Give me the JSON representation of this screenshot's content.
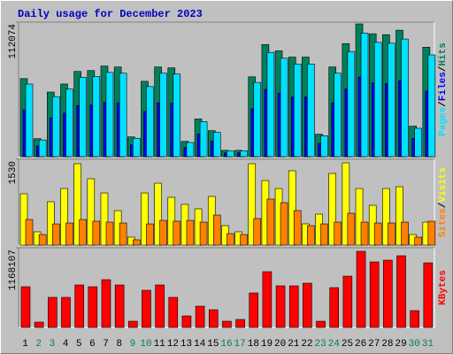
{
  "chart_data": [
    {
      "type": "bar",
      "title": "Daily usage for December 2023",
      "title_color": "#0000C0",
      "ylim": [
        0,
        112074
      ],
      "yticks": [
        112074
      ],
      "legend_separator": "/",
      "series": [
        {
          "name": "Hits",
          "color": "#00805C",
          "values": [
            65006,
            14944,
            53798,
            60523,
            70984,
            71731,
            75467,
            74720,
            16438,
            62765,
            74720,
            73973,
            12702,
            31382,
            21669,
            5230,
            5230,
            66500,
            93400,
            88170,
            82939,
            82939,
            18680,
            74720,
            94147,
            110586,
            102366,
            101619,
            105355,
            25405,
            91158
          ]
        },
        {
          "name": "Files",
          "color": "#0000FF",
          "values": [
            39004,
            8966,
            32279,
            36314,
            42590,
            43039,
            45280,
            44832,
            9863,
            37659,
            44832,
            44384,
            7621,
            18829,
            13001,
            3138,
            3138,
            39900,
            56040,
            52902,
            49763,
            49763,
            11208,
            44832,
            56488,
            66352,
            61420,
            60971,
            63213,
            15243,
            54695
          ]
        },
        {
          "name": "Pages",
          "color": "#00E0FF",
          "values": [
            60456,
            13898,
            50032,
            56286,
            66015,
            66710,
            70184,
            69490,
            15287,
            58371,
            69490,
            68795,
            11813,
            29185,
            20152,
            4864,
            4864,
            61845,
            86862,
            81998,
            77133,
            77133,
            17372,
            69490,
            87557,
            102845,
            95200,
            94506,
            97980,
            23627,
            84777
          ]
        }
      ]
    },
    {
      "type": "bar",
      "ylim": [
        0,
        1530
      ],
      "yticks": [
        1530
      ],
      "legend_separator": "/",
      "series": [
        {
          "name": "Visits",
          "color": "#FFFF00",
          "values": [
            915,
            237,
            773,
            1009,
            1451,
            1183,
            930,
            615,
            142,
            930,
            1104,
            852,
            726,
            647,
            868,
            347,
            237,
            1451,
            1151,
            1009,
            1325,
            379,
            552,
            1278,
            1467,
            1009,
            710,
            1009,
            1041,
            189,
            410
          ]
        },
        {
          "name": "Sites",
          "color": "#FF8000",
          "values": [
            457,
            189,
            378,
            394,
            457,
            426,
            410,
            394,
            95,
            378,
            441,
            426,
            441,
            410,
            536,
            205,
            189,
            473,
            820,
            757,
            615,
            347,
            378,
            410,
            568,
            410,
            394,
            394,
            410,
            142,
            426
          ]
        }
      ]
    },
    {
      "type": "bar",
      "ylim": [
        0,
        1168107
      ],
      "yticks": [
        1168107
      ],
      "series": [
        {
          "name": "KBytes",
          "color": "#FF0000",
          "values": [
            597024,
            77874,
            441286,
            441286,
            622982,
            597024,
            700866,
            622982,
            90853,
            545118,
            622982,
            441286,
            168727,
            311496,
            259580,
            90853,
            116811,
            506181,
            817677,
            610013,
            610013,
            648950,
            90853,
            584055,
            752782,
            1116194,
            960446,
            986404,
            1051299,
            246601,
            947467
          ]
        }
      ],
      "categories": [
        "1",
        "2",
        "3",
        "4",
        "5",
        "6",
        "7",
        "8",
        "9",
        "10",
        "11",
        "12",
        "13",
        "14",
        "15",
        "16",
        "17",
        "18",
        "19",
        "20",
        "21",
        "22",
        "23",
        "24",
        "25",
        "26",
        "27",
        "28",
        "29",
        "30",
        "31"
      ],
      "category_colors": [
        "#000000",
        "#00805C",
        "#00805C",
        "#000000",
        "#000000",
        "#000000",
        "#000000",
        "#000000",
        "#00805C",
        "#00805C",
        "#000000",
        "#000000",
        "#000000",
        "#000000",
        "#000000",
        "#00805C",
        "#00805C",
        "#000000",
        "#000000",
        "#000000",
        "#000000",
        "#000000",
        "#00805C",
        "#00805C",
        "#000000",
        "#000000",
        "#000000",
        "#000000",
        "#000000",
        "#00805C",
        "#00805C"
      ]
    }
  ]
}
